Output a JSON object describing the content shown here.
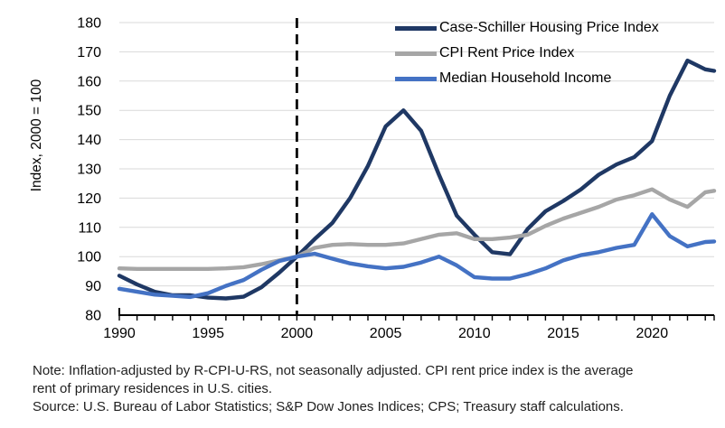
{
  "chart_data": {
    "type": "line",
    "title": "",
    "xlabel": "",
    "ylabel": "Index, 2000 = 100",
    "ylim": [
      80,
      180
    ],
    "yticks": [
      80,
      90,
      100,
      110,
      120,
      130,
      140,
      150,
      160,
      170,
      180
    ],
    "xlim": [
      1990,
      2023.5
    ],
    "xtick_step": 1,
    "xticks_labeled": [
      1990,
      1995,
      2000,
      2005,
      2010,
      2015,
      2020
    ],
    "reference_line_x": 2000,
    "grid": true,
    "legend_position": "top-right-inside",
    "x": [
      1990,
      1991,
      1992,
      1993,
      1994,
      1995,
      1996,
      1997,
      1998,
      1999,
      2000,
      2001,
      2002,
      2003,
      2004,
      2005,
      2006,
      2007,
      2008,
      2009,
      2010,
      2011,
      2012,
      2013,
      2014,
      2015,
      2016,
      2017,
      2018,
      2019,
      2020,
      2021,
      2022,
      2023,
      2023.5
    ],
    "series": [
      {
        "name": "Case-Schiller Housing Price Index",
        "color": "#1F3864",
        "values": [
          93.5,
          90.5,
          88,
          86.8,
          86.8,
          86,
          85.7,
          86.3,
          89.5,
          94.5,
          100,
          106,
          111.5,
          120,
          131,
          144.5,
          150,
          143,
          128,
          114,
          107.5,
          101.5,
          100.8,
          109.5,
          115.5,
          119,
          123,
          128,
          131.5,
          134,
          139.5,
          155,
          167,
          164,
          163.5
        ]
      },
      {
        "name": "CPI Rent Price Index",
        "color": "#A6A6A6",
        "values": [
          96,
          95.8,
          95.8,
          95.8,
          95.8,
          95.8,
          96,
          96.4,
          97.4,
          98.7,
          100,
          103,
          104,
          104.3,
          104,
          104,
          104.5,
          106,
          107.5,
          108,
          106,
          106,
          106.5,
          107.5,
          110.5,
          113,
          115,
          117,
          119.5,
          121,
          123,
          119.5,
          117,
          122,
          122.5
        ]
      },
      {
        "name": "Median Household Income",
        "color": "#4472C4",
        "values": [
          89,
          88,
          87,
          86.6,
          86.2,
          87.5,
          90,
          92,
          95.5,
          98.5,
          100,
          101,
          99.3,
          97.7,
          96.7,
          96,
          96.5,
          98,
          100,
          97,
          93,
          92.5,
          92.5,
          94,
          96,
          98.7,
          100.5,
          101.5,
          103,
          104,
          114.5,
          107,
          103.5,
          105,
          105.2
        ]
      }
    ]
  },
  "colors": {
    "gridline": "#D9D9D9",
    "axis": "#000000",
    "reference_line": "#000000"
  },
  "notes": [
    "Note: Inflation-adjusted by R-CPI-U-RS, not seasonally adjusted. CPI rent price index is the average",
    "rent of primary residences in U.S. cities.",
    "Source: U.S. Bureau of Labor Statistics; S&P Dow Jones Indices; CPS; Treasury staff calculations."
  ]
}
